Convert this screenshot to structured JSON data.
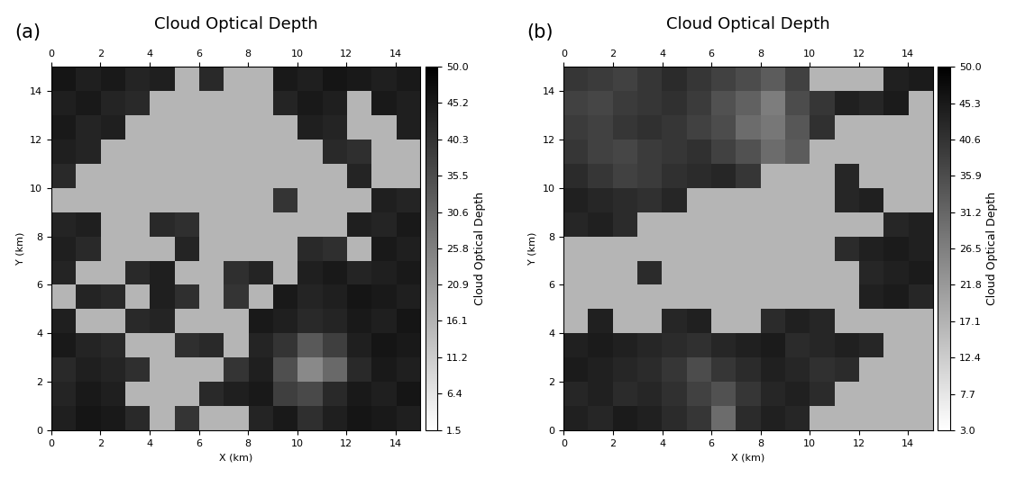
{
  "chart_data": [
    {
      "type": "heatmap",
      "annotation": "(a)",
      "title": "Cloud Optical Depth",
      "x_label": "X (km)",
      "y_label": "Y (km)",
      "xlim": [
        0,
        15
      ],
      "ylim": [
        0,
        15
      ],
      "xticks": [
        0,
        2,
        4,
        6,
        8,
        10,
        12,
        14
      ],
      "yticks": [
        0,
        2,
        4,
        6,
        8,
        10,
        12,
        14
      ],
      "colorbar_label": "Cloud Optical Depth",
      "colorbar_range": [
        1.5,
        50
      ],
      "colorbar_ticks": [
        1.5,
        6.4,
        11.2,
        16.1,
        20.9,
        25.8,
        30.6,
        35.5,
        40.3,
        45.2,
        {
          "value": 50,
          "label": "50.0"
        }
      ],
      "cells": [
        [
          44,
          46,
          45,
          42,
          null,
          40,
          null,
          null,
          43,
          45,
          41,
          44,
          46,
          45,
          44
        ],
        [
          43,
          45,
          44,
          null,
          null,
          null,
          42,
          44,
          45,
          38,
          36,
          42,
          45,
          44,
          46
        ],
        [
          42,
          44,
          43,
          41,
          null,
          null,
          null,
          40,
          44,
          35,
          24,
          30,
          42,
          45,
          44
        ],
        [
          45,
          43,
          42,
          null,
          null,
          41,
          42,
          null,
          43,
          40,
          33,
          38,
          44,
          46,
          45
        ],
        [
          44,
          null,
          null,
          42,
          43,
          null,
          null,
          null,
          45,
          44,
          42,
          43,
          45,
          44,
          46
        ],
        [
          null,
          43,
          42,
          null,
          44,
          41,
          null,
          40,
          null,
          45,
          43,
          44,
          46,
          45,
          44
        ],
        [
          43,
          null,
          null,
          42,
          44,
          null,
          null,
          41,
          43,
          null,
          44,
          45,
          43,
          44,
          45
        ],
        [
          44,
          42,
          null,
          null,
          null,
          43,
          null,
          null,
          null,
          null,
          42,
          41,
          null,
          45,
          44
        ],
        [
          43,
          44,
          null,
          null,
          42,
          41,
          null,
          null,
          null,
          null,
          null,
          null,
          44,
          43,
          45
        ],
        [
          null,
          null,
          null,
          null,
          null,
          null,
          null,
          null,
          null,
          40,
          null,
          null,
          null,
          44,
          43
        ],
        [
          42,
          null,
          null,
          null,
          null,
          null,
          null,
          null,
          null,
          null,
          null,
          null,
          43,
          null,
          null
        ],
        [
          44,
          43,
          null,
          null,
          null,
          null,
          null,
          null,
          null,
          null,
          null,
          42,
          41,
          null,
          null
        ],
        [
          45,
          43,
          44,
          null,
          null,
          null,
          null,
          null,
          null,
          null,
          44,
          43,
          null,
          null,
          44
        ],
        [
          44,
          45,
          43,
          42,
          null,
          null,
          null,
          null,
          null,
          43,
          45,
          44,
          null,
          45,
          44
        ],
        [
          46,
          44,
          45,
          43,
          44,
          null,
          42,
          null,
          null,
          45,
          44,
          46,
          45,
          44,
          45
        ]
      ]
    },
    {
      "type": "heatmap",
      "annotation": "(b)",
      "title": "Cloud Optical Depth",
      "x_label": "X (km)",
      "y_label": "Y (km)",
      "xlim": [
        0,
        15
      ],
      "ylim": [
        0,
        15
      ],
      "xticks": [
        0,
        2,
        4,
        6,
        8,
        10,
        12,
        14
      ],
      "yticks": [
        0,
        2,
        4,
        6,
        8,
        10,
        12,
        14
      ],
      "colorbar_label": "Cloud Optical Depth",
      "colorbar_range": [
        3,
        50
      ],
      "colorbar_ticks": [
        {
          "value": 3,
          "label": "3.0"
        },
        7.7,
        12.4,
        17.1,
        21.8,
        26.5,
        31.2,
        35.9,
        40.6,
        45.3,
        {
          "value": 50,
          "label": "50.0"
        }
      ],
      "cells": [
        [
          44,
          43,
          45,
          44,
          42,
          40,
          30,
          42,
          44,
          43,
          null,
          null,
          null,
          null,
          null
        ],
        [
          43,
          44,
          42,
          43,
          41,
          38,
          35,
          40,
          43,
          44,
          42,
          null,
          null,
          null,
          null
        ],
        [
          45,
          44,
          43,
          42,
          40,
          36,
          40,
          42,
          44,
          43,
          41,
          42,
          null,
          null,
          null
        ],
        [
          44,
          45,
          44,
          43,
          42,
          41,
          43,
          44,
          45,
          42,
          43,
          44,
          43,
          null,
          null
        ],
        [
          null,
          44,
          null,
          null,
          43,
          44,
          null,
          null,
          42,
          44,
          43,
          null,
          null,
          null,
          null
        ],
        [
          null,
          null,
          null,
          null,
          null,
          null,
          null,
          null,
          null,
          null,
          null,
          null,
          44,
          45,
          43
        ],
        [
          null,
          null,
          null,
          42,
          null,
          null,
          null,
          null,
          null,
          null,
          null,
          null,
          43,
          44,
          45
        ],
        [
          null,
          null,
          null,
          null,
          null,
          null,
          null,
          null,
          null,
          null,
          null,
          42,
          44,
          45,
          44
        ],
        [
          43,
          44,
          42,
          null,
          null,
          null,
          null,
          null,
          null,
          null,
          null,
          null,
          null,
          43,
          44
        ],
        [
          44,
          43,
          42,
          41,
          43,
          null,
          null,
          null,
          null,
          null,
          null,
          43,
          44,
          null,
          null
        ],
        [
          42,
          40,
          38,
          39,
          41,
          42,
          43,
          40,
          null,
          null,
          null,
          43,
          null,
          null,
          null
        ],
        [
          40,
          38,
          37,
          39,
          40,
          41,
          38,
          35,
          30,
          33,
          null,
          null,
          null,
          null,
          null
        ],
        [
          39,
          38,
          40,
          41,
          40,
          38,
          36,
          30,
          28,
          34,
          41,
          null,
          null,
          null,
          null
        ],
        [
          38,
          37,
          39,
          40,
          41,
          39,
          35,
          32,
          27,
          36,
          40,
          44,
          43,
          45,
          null
        ],
        [
          40,
          39,
          38,
          40,
          42,
          40,
          38,
          36,
          33,
          38,
          null,
          null,
          null,
          44,
          45
        ]
      ]
    }
  ]
}
